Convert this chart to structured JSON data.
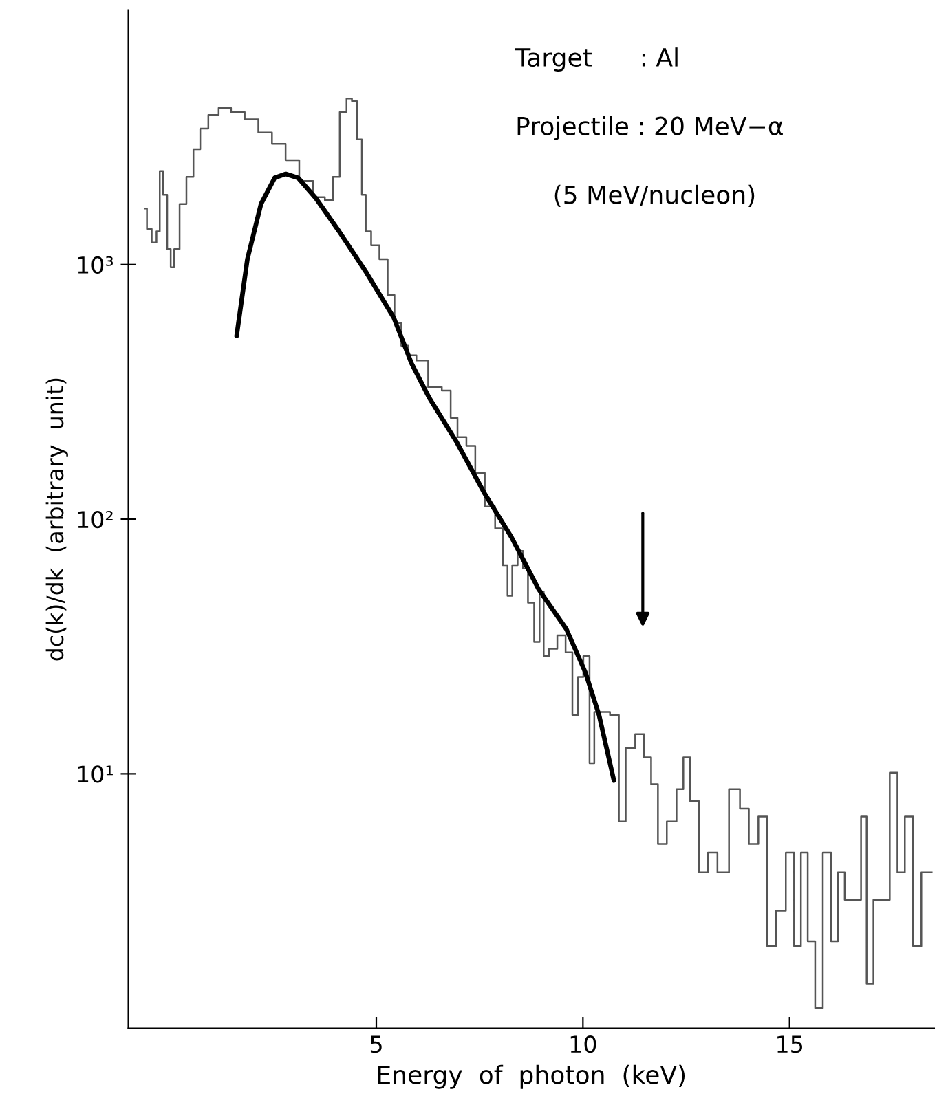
{
  "chart_data": {
    "type": "line",
    "xlabel": "Energy  of  photon  (keV)",
    "ylabel": "dc(k)/dk  (arbitrary  unit)",
    "annotations": [
      "Target      : Al",
      "Projectile : 20 MeV−α",
      "(5 MeV/nucleon)"
    ],
    "log": "y",
    "xlim": [
      -1,
      18.5
    ],
    "xticks": [
      5,
      10,
      15
    ],
    "ylim": [
      1,
      10000
    ],
    "yticks": [
      {
        "value": 10,
        "label": "10¹"
      },
      {
        "value": 100,
        "label": "10²"
      },
      {
        "value": 1000,
        "label": "10³"
      }
    ],
    "grid": false,
    "legend": false,
    "series": [
      {
        "type": "step",
        "color": "#555555",
        "x": [
          -0.6,
          -0.5,
          -0.37,
          -0.27,
          -0.21,
          -0.11,
          -0.01,
          0.06,
          0.16,
          0.32,
          0.49,
          0.66,
          0.82,
          1.05,
          1.32,
          1.65,
          1.98,
          2.31,
          2.64,
          2.97,
          3.3,
          3.64,
          3.87,
          4.03,
          4.2,
          4.36,
          4.46,
          4.6,
          4.7,
          4.79,
          4.96,
          5.19,
          5.36,
          5.52,
          5.69,
          5.85,
          6.09,
          6.42,
          6.75,
          6.85,
          7.08,
          7.28,
          7.51,
          7.74,
          8.01,
          8.11,
          8.24,
          8.34,
          8.5,
          8.6,
          8.74,
          8.9,
          9.0,
          9.1,
          9.26,
          9.5,
          9.66,
          9.83,
          9.93,
          10.09,
          10.23,
          10.32,
          10.49,
          10.82,
          10.92,
          11.15,
          11.38,
          11.58,
          11.72,
          11.91,
          12.15,
          12.38,
          12.48,
          12.71,
          12.91,
          13.14,
          13.37,
          13.7,
          13.9,
          14.13,
          14.36,
          14.56,
          14.79,
          15.03,
          15.19,
          15.36,
          15.52,
          15.72,
          15.89,
          16.12,
          16.22,
          16.45,
          16.68,
          16.78,
          16.95,
          17.11,
          17.34,
          17.51,
          17.71,
          17.87,
          18.11,
          18.27,
          18.44
        ],
        "values": [
          1660,
          1380,
          1220,
          1350,
          2330,
          1880,
          1150,
          975,
          1150,
          1730,
          2210,
          2840,
          3420,
          3870,
          4120,
          3970,
          3720,
          3300,
          2980,
          2570,
          2130,
          1840,
          1790,
          2210,
          3970,
          4490,
          4390,
          3100,
          1880,
          1350,
          1190,
          1050,
          760,
          590,
          480,
          440,
          420,
          330,
          320,
          250,
          210,
          194,
          152,
          112,
          92,
          66,
          50,
          66,
          75,
          64,
          47,
          33,
          52,
          29,
          31,
          35,
          30,
          17,
          24,
          29,
          11,
          17.5,
          17.5,
          17,
          6.5,
          12.6,
          14.3,
          11.6,
          9.1,
          5.3,
          6.5,
          8.7,
          11.6,
          7.8,
          4.1,
          4.9,
          4.1,
          8.7,
          7.3,
          5.3,
          6.8,
          2.1,
          2.9,
          4.9,
          2.1,
          4.9,
          2.2,
          1.2,
          4.9,
          2.2,
          4.1,
          3.2,
          3.2,
          6.8,
          1.5,
          3.2,
          3.2,
          10.1,
          4.1,
          6.8,
          2.1,
          4.1,
          4.1
        ]
      },
      {
        "color": "#000000",
        "x": [
          1.62,
          1.88,
          2.21,
          2.54,
          2.81,
          3.11,
          3.54,
          4.1,
          4.76,
          5.42,
          5.85,
          6.28,
          6.95,
          7.61,
          8.27,
          8.93,
          9.6,
          10.06,
          10.39,
          10.75
        ],
        "values": [
          525,
          1050,
          1730,
          2190,
          2270,
          2190,
          1820,
          1350,
          930,
          620,
          410,
          300,
          200,
          127,
          85,
          53,
          37,
          25,
          17,
          9.4
        ]
      }
    ]
  }
}
